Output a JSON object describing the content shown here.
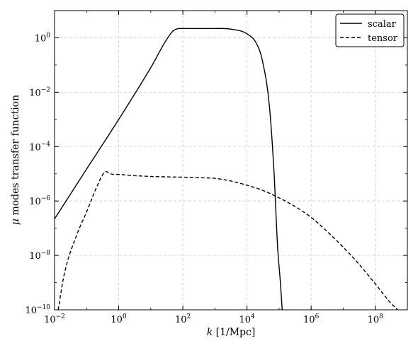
{
  "chart_data": {
    "type": "line",
    "title": "",
    "xlabel": {
      "italic": "k",
      "rest": " [1/Mpc]"
    },
    "ylabel": {
      "italic": "μ",
      "rest": " modes transfer function"
    },
    "x_scale": "log",
    "y_scale": "log",
    "xlim": [
      0.01,
      1000000000
    ],
    "ylim": [
      1e-10,
      10
    ],
    "grid": true,
    "legend_position": "top-right",
    "x_ticks": [
      {
        "value": 0.01,
        "base": "10",
        "exp": "−2"
      },
      {
        "value": 1,
        "base": "10",
        "exp": "0"
      },
      {
        "value": 100,
        "base": "10",
        "exp": "2"
      },
      {
        "value": 10000,
        "base": "10",
        "exp": "4"
      },
      {
        "value": 1000000,
        "base": "10",
        "exp": "6"
      },
      {
        "value": 100000000,
        "base": "10",
        "exp": "8"
      }
    ],
    "y_ticks": [
      {
        "value": 1e-10,
        "base": "10",
        "exp": "−10"
      },
      {
        "value": 1e-08,
        "base": "10",
        "exp": "−8"
      },
      {
        "value": 1e-06,
        "base": "10",
        "exp": "−6"
      },
      {
        "value": 0.0001,
        "base": "10",
        "exp": "−4"
      },
      {
        "value": 0.01,
        "base": "10",
        "exp": "−2"
      },
      {
        "value": 1,
        "base": "10",
        "exp": "0"
      }
    ],
    "series": [
      {
        "name": "scalar",
        "style": "solid",
        "color": "#000000",
        "x": [
          0.01,
          0.1,
          1,
          10,
          30,
          50,
          80,
          100,
          1000,
          3000,
          10000,
          20000,
          30000,
          50000,
          70000,
          90000,
          110000,
          125000
        ],
        "y": [
          2.2e-07,
          1.5e-05,
          0.001,
          0.08,
          0.8,
          1.8,
          2.2,
          2.2,
          2.2,
          2.1,
          1.4,
          0.6,
          0.15,
          0.003,
          1e-05,
          2e-08,
          1e-09,
          1e-10
        ]
      },
      {
        "name": "tensor",
        "style": "dashed",
        "color": "#000000",
        "x": [
          0.013,
          0.02,
          0.05,
          0.1,
          0.2,
          0.35,
          0.42,
          0.5,
          0.7,
          1,
          2,
          10,
          100,
          300,
          1000,
          3000,
          10000,
          30000,
          100000,
          300000,
          1000000,
          3000000,
          10000000,
          30000000,
          100000000,
          300000000,
          500000000,
          600000000
        ],
        "y": [
          1e-10,
          2e-09,
          6e-08,
          4e-07,
          3e-06,
          1.1e-05,
          1.2e-05,
          1.05e-05,
          9.5e-06,
          9.5e-06,
          8.8e-06,
          8e-06,
          7.5e-06,
          7.2e-06,
          6.8e-06,
          5.5e-06,
          3.8e-06,
          2.5e-06,
          1.3e-06,
          6.5e-07,
          2.5e-07,
          8e-08,
          2e-08,
          5e-09,
          9e-10,
          1.8e-10,
          1e-10,
          8e-11
        ]
      }
    ]
  }
}
